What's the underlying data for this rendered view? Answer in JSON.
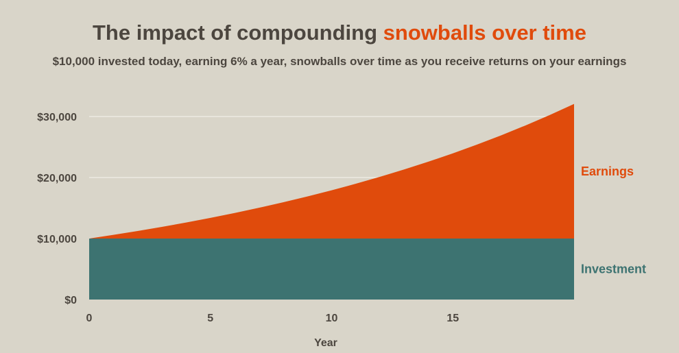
{
  "header": {
    "title_main": "The impact of compounding ",
    "title_accent": "snowballs over time",
    "subtitle": "$10,000 invested today, earning 6% a year, snowballs over time as you receive returns on your earnings"
  },
  "colors": {
    "background": "#d9d5c9",
    "earnings": "#e04b0c",
    "investment": "#3d7371",
    "text": "#4c463f",
    "accent": "#e04b0c",
    "grid": "#f2efe8"
  },
  "chart_data": {
    "type": "area",
    "stacked": true,
    "title": "The impact of compounding snowballs over time",
    "subtitle": "$10,000 invested today, earning 6% a year, snowballs over time as you receive returns on your earnings",
    "xlabel": "Year",
    "ylabel": "",
    "xlim": [
      0,
      20
    ],
    "ylim": [
      0,
      30000
    ],
    "x_ticks": [
      0,
      5,
      10,
      15
    ],
    "x_tick_labels": [
      "0",
      "5",
      "10",
      "15"
    ],
    "y_ticks": [
      0,
      10000,
      20000,
      30000
    ],
    "y_tick_labels": [
      "$0",
      "$10,000",
      "$20,000",
      "$30,000"
    ],
    "grid": true,
    "legend": "inline-right",
    "x": [
      0,
      1,
      2,
      3,
      4,
      5,
      6,
      7,
      8,
      9,
      10,
      11,
      12,
      13,
      14,
      15,
      16,
      17,
      18,
      19,
      20
    ],
    "series": [
      {
        "name": "Investment",
        "color": "#3d7371",
        "values": [
          10000,
          10000,
          10000,
          10000,
          10000,
          10000,
          10000,
          10000,
          10000,
          10000,
          10000,
          10000,
          10000,
          10000,
          10000,
          10000,
          10000,
          10000,
          10000,
          10000,
          10000
        ]
      },
      {
        "name": "Earnings",
        "color": "#e04b0c",
        "values": [
          0,
          600,
          1236,
          1910,
          2625,
          3382,
          4185,
          5036,
          5938,
          6895,
          7908,
          8983,
          10122,
          11329,
          12609,
          13966,
          15404,
          16928,
          18543,
          20256,
          22071
        ]
      }
    ]
  }
}
